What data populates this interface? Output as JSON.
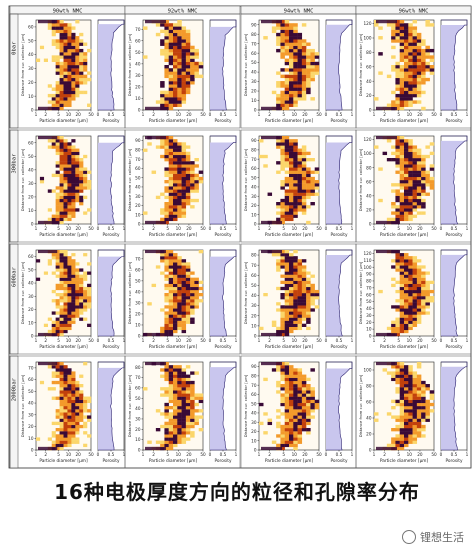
{
  "chart_data": {
    "type": "heatmap",
    "column_headers": [
      "90wt% NMC",
      "92wt% NMC",
      "94wt% NMC",
      "96wt% NMC"
    ],
    "row_labels": [
      "0bar",
      "300bar",
      "600bar",
      "2000bar"
    ],
    "heatmap_ylabel": "Distance from cur. collector [μm]",
    "heatmap_xlabel": "Particle diameter [μm]",
    "porosity_xlabel": "Porosity",
    "x_ticks": [
      "1",
      "2",
      "5",
      "10",
      "20",
      "50"
    ],
    "porosity_ticks": [
      "0",
      "0.5",
      "1"
    ],
    "panels": [
      [
        {
          "yticks": [
            "0",
            "10",
            "20",
            "30",
            "40",
            "50",
            "60"
          ],
          "ymax": 65,
          "thickness": 62
        },
        {
          "yticks": [
            "0",
            "10",
            "20",
            "30",
            "40",
            "50",
            "60",
            "70"
          ],
          "ymax": 78,
          "thickness": 72
        },
        {
          "yticks": [
            "0",
            "10",
            "20",
            "30",
            "40",
            "50",
            "60",
            "70",
            "80",
            "90"
          ],
          "ymax": 95,
          "thickness": 90
        },
        {
          "yticks": [
            "0",
            "20",
            "40",
            "60",
            "80",
            "100",
            "120"
          ],
          "ymax": 125,
          "thickness": 118
        }
      ],
      [
        {
          "yticks": [
            "0",
            "10",
            "20",
            "30",
            "40",
            "50",
            "60"
          ],
          "ymax": 65,
          "thickness": 60
        },
        {
          "yticks": [
            "0",
            "10",
            "20",
            "30",
            "40",
            "50",
            "60",
            "70",
            "80",
            "90"
          ],
          "ymax": 95,
          "thickness": 88
        },
        {
          "yticks": [
            "0",
            "10",
            "20",
            "30",
            "40",
            "50",
            "60",
            "70",
            "80",
            "90"
          ],
          "ymax": 95,
          "thickness": 88
        },
        {
          "yticks": [
            "0",
            "20",
            "40",
            "60",
            "80",
            "100",
            "120"
          ],
          "ymax": 125,
          "thickness": 118
        }
      ],
      [
        {
          "yticks": [
            "0",
            "10",
            "20",
            "30",
            "40",
            "50",
            "60"
          ],
          "ymax": 65,
          "thickness": 60
        },
        {
          "yticks": [
            "0",
            "10",
            "20",
            "30",
            "40",
            "50",
            "60",
            "70"
          ],
          "ymax": 78,
          "thickness": 72
        },
        {
          "yticks": [
            "0",
            "10",
            "20",
            "30",
            "40",
            "50",
            "60",
            "70",
            "80"
          ],
          "ymax": 85,
          "thickness": 80
        },
        {
          "yticks": [
            "0",
            "10",
            "20",
            "30",
            "40",
            "50",
            "60",
            "70",
            "80",
            "90",
            "100",
            "110",
            "120"
          ],
          "ymax": 125,
          "thickness": 118
        }
      ],
      [
        {
          "yticks": [
            "0",
            "10",
            "20",
            "30",
            "40",
            "50",
            "60",
            "70"
          ],
          "ymax": 75,
          "thickness": 70
        },
        {
          "yticks": [
            "0",
            "10",
            "20",
            "30",
            "40",
            "50",
            "60",
            "70",
            "80"
          ],
          "ymax": 85,
          "thickness": 80
        },
        {
          "yticks": [
            "0",
            "10",
            "20",
            "30",
            "40",
            "50",
            "60",
            "70",
            "80",
            "90"
          ],
          "ymax": 95,
          "thickness": 88
        },
        {
          "yticks": [
            "0",
            "20",
            "40",
            "60",
            "80",
            "100"
          ],
          "ymax": 110,
          "thickness": 104
        }
      ]
    ],
    "colors": {
      "heat_low": "#fbd66a",
      "heat_mid": "#f39a2b",
      "heat_high": "#c2410c",
      "heat_max": "#3a0a36",
      "porosity_fill": "#c9c6ee",
      "porosity_line": "#2b2170"
    }
  },
  "caption": "16种电极厚度方向的粒径和孔隙率分布",
  "watermark": "锂想生活"
}
